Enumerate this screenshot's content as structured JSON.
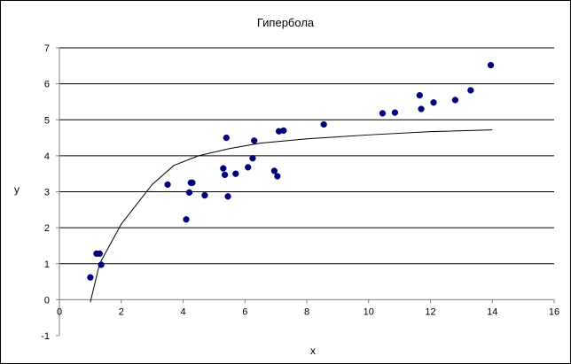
{
  "chart_data": {
    "type": "scatter",
    "title": "Гипербола",
    "xlabel": "x",
    "ylabel": "y",
    "xlim": [
      0,
      16
    ],
    "ylim": [
      -1,
      7
    ],
    "x_ticks": [
      0,
      2,
      4,
      6,
      8,
      10,
      12,
      14,
      16
    ],
    "y_ticks": [
      -1,
      0,
      1,
      2,
      3,
      4,
      5,
      6,
      7
    ],
    "grid": {
      "horizontal": [
        1,
        2,
        3,
        4,
        5,
        6,
        7
      ],
      "vertical": false
    },
    "colors": {
      "points": "#00007a",
      "trendline": "#000000",
      "grid": "#000000",
      "axis": "#808080"
    },
    "series": [
      {
        "type": "scatter",
        "x": [
          1.0,
          1.2,
          1.3,
          1.35,
          3.5,
          4.1,
          4.2,
          4.25,
          4.3,
          4.7,
          5.3,
          5.35,
          5.4,
          5.45,
          5.7,
          6.1,
          6.25,
          6.3,
          6.95,
          7.05,
          7.1,
          7.25,
          8.55,
          10.45,
          10.85,
          11.65,
          11.7,
          12.1,
          12.8,
          13.3,
          13.95
        ],
        "y": [
          0.62,
          1.28,
          1.28,
          0.97,
          3.2,
          2.23,
          2.98,
          3.25,
          3.25,
          2.9,
          3.65,
          3.47,
          4.5,
          2.87,
          3.5,
          3.68,
          3.93,
          4.42,
          3.58,
          3.43,
          4.68,
          4.7,
          4.87,
          5.18,
          5.2,
          5.68,
          5.3,
          5.48,
          5.55,
          5.82,
          6.52
        ]
      },
      {
        "type": "line",
        "x": [
          1.0,
          1.3,
          2.0,
          3.0,
          3.7,
          4.5,
          5.5,
          6.5,
          8.0,
          10.0,
          12.0,
          14.0
        ],
        "y": [
          -0.07,
          1.0,
          2.1,
          3.2,
          3.73,
          4.0,
          4.2,
          4.35,
          4.47,
          4.58,
          4.67,
          4.72
        ]
      }
    ]
  }
}
